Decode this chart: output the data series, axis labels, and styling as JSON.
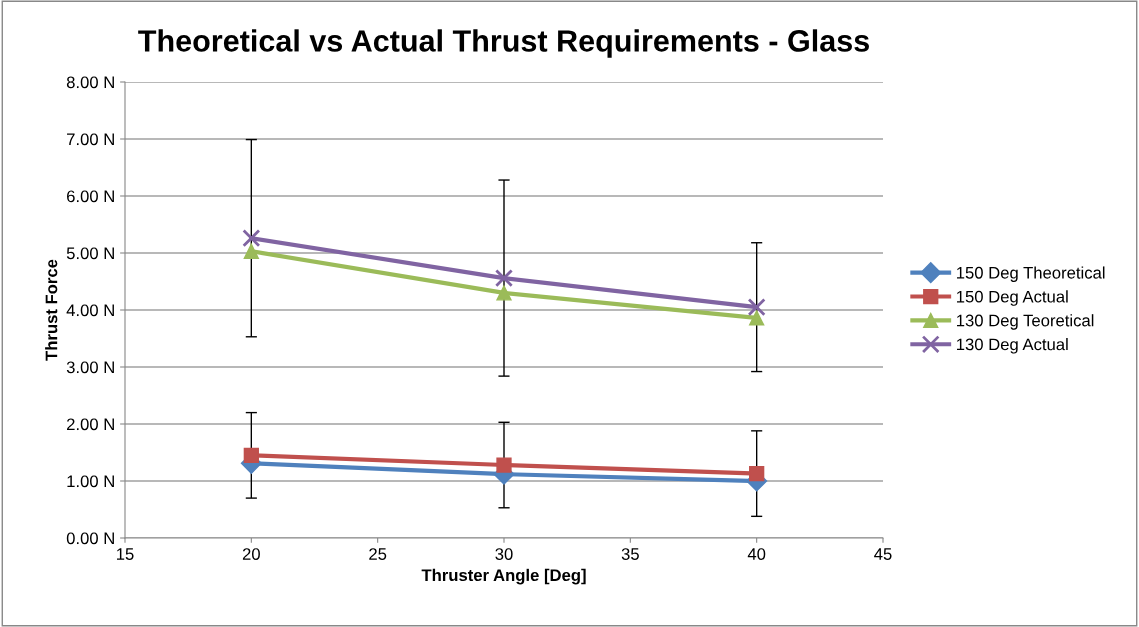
{
  "chart_data": {
    "type": "line",
    "title": "Theoretical vs Actual Thrust Requirements - Glass",
    "xlabel": "Thruster Angle [Deg]",
    "ylabel": "Thrust Force",
    "x": [
      20,
      30,
      40
    ],
    "series": [
      {
        "name": "150 Deg Theoretical",
        "color": "#4f81bd",
        "marker": "diamond",
        "values": [
          1.31,
          1.12,
          1.0
        ]
      },
      {
        "name": "150 Deg Actual",
        "color": "#c0504d",
        "marker": "square",
        "values": [
          1.45,
          1.28,
          1.13
        ],
        "errors": [
          0.75,
          0.75,
          0.75
        ]
      },
      {
        "name": "130 Deg Teoretical",
        "color": "#9bbb59",
        "marker": "triangle",
        "values": [
          5.03,
          4.3,
          3.86
        ]
      },
      {
        "name": "130 Deg Actual",
        "color": "#8064a2",
        "marker": "cross",
        "values": [
          5.26,
          4.56,
          4.05
        ],
        "errors": [
          1.73,
          1.72,
          1.13
        ]
      }
    ],
    "xlim": [
      15,
      45
    ],
    "xticks": [
      15,
      20,
      25,
      30,
      35,
      40,
      45
    ],
    "ylim": [
      0,
      8
    ],
    "yticks": [
      {
        "value": 0,
        "label": "0.00 N"
      },
      {
        "value": 1,
        "label": "1.00 N"
      },
      {
        "value": 2,
        "label": "2.00 N"
      },
      {
        "value": 3,
        "label": "3.00 N"
      },
      {
        "value": 4,
        "label": "4.00 N"
      },
      {
        "value": 5,
        "label": "5.00 N"
      },
      {
        "value": 6,
        "label": "6.00 N"
      },
      {
        "value": 7,
        "label": "7.00 N"
      },
      {
        "value": 8,
        "label": "8.00 N"
      }
    ],
    "grid": "y",
    "legend": "right",
    "line_style": "solid"
  }
}
